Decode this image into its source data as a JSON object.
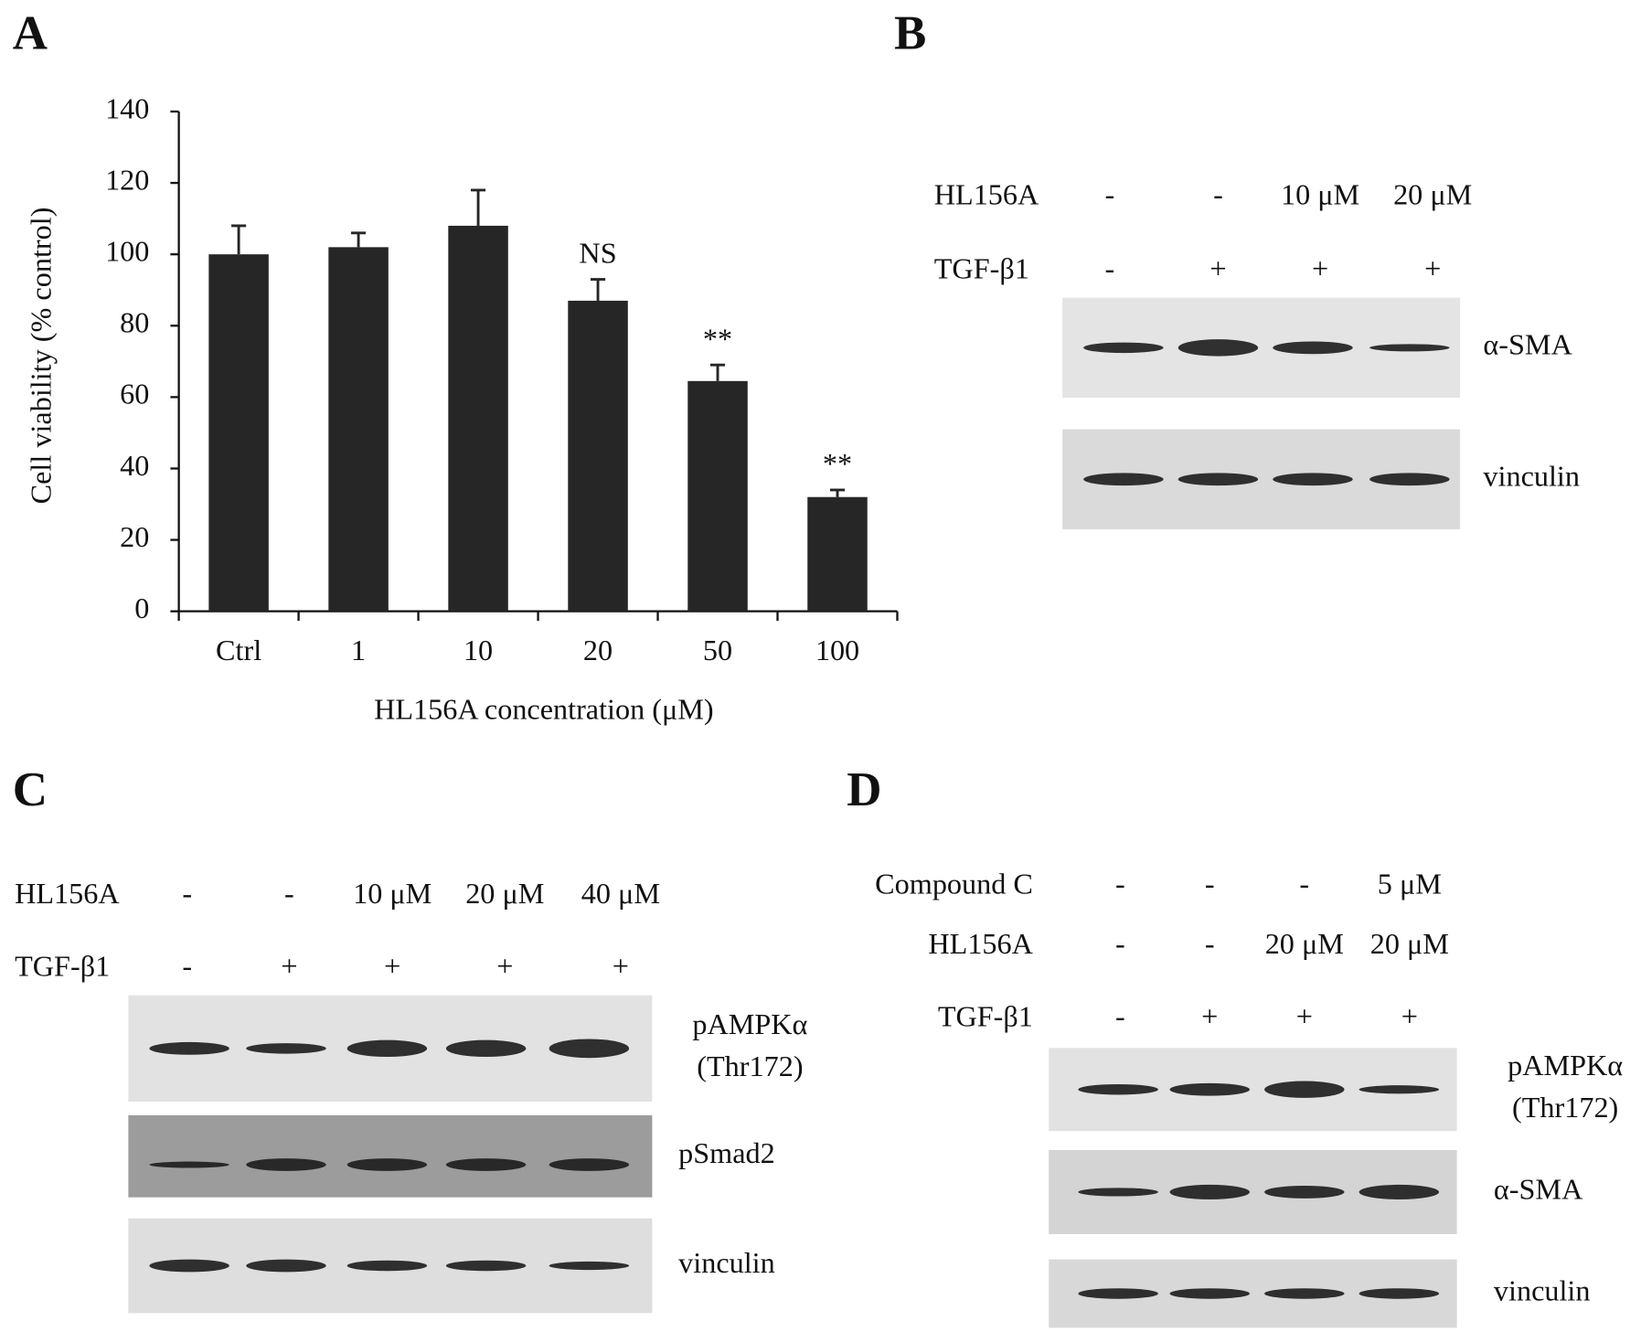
{
  "panel_labels": [
    "A",
    "B",
    "C",
    "D"
  ],
  "chart_data": {
    "type": "bar",
    "xlabel": "HL156A concentration (μM)",
    "ylabel": "Cell viability (% control)",
    "categories": [
      "Ctrl",
      "1",
      "10",
      "20",
      "50",
      "100"
    ],
    "values": [
      100,
      102,
      108,
      87,
      64.5,
      32
    ],
    "errors": [
      8,
      4,
      10,
      6,
      4.5,
      2
    ],
    "annotations": [
      null,
      null,
      null,
      "NS",
      "**",
      "**"
    ],
    "color": "#262626",
    "ylim": [
      0,
      140
    ],
    "yticks": [
      0,
      20,
      40,
      60,
      80,
      100,
      120,
      140
    ],
    "grid": false
  },
  "blots": {
    "B": {
      "conditions": [
        {
          "label": "HL156A",
          "values": [
            "-",
            "-",
            "10 μM",
            "20 μM"
          ]
        },
        {
          "label": "TGF-β1",
          "values": [
            "-",
            "+",
            "+",
            "+"
          ]
        }
      ],
      "proteins": [
        [
          "α-SMA"
        ],
        [
          "vinculin"
        ]
      ]
    },
    "C": {
      "conditions": [
        {
          "label": "HL156A",
          "values": [
            "-",
            "-",
            "10 μM",
            "20 μM",
            "40 μM"
          ]
        },
        {
          "label": "TGF-β1",
          "values": [
            "-",
            "+",
            "+",
            "+",
            "+"
          ]
        }
      ],
      "proteins": [
        [
          "pAMPKα",
          "(Thr172)"
        ],
        [
          "pSmad2"
        ],
        [
          "vinculin"
        ]
      ]
    },
    "D": {
      "conditions": [
        {
          "label": "Compound C",
          "values": [
            "-",
            "-",
            "-",
            "5 μM"
          ]
        },
        {
          "label": "HL156A",
          "values": [
            "-",
            "-",
            "20 μM",
            "20 μM"
          ]
        },
        {
          "label": "TGF-β1",
          "values": [
            "-",
            "+",
            "+",
            "+"
          ]
        }
      ],
      "proteins": [
        [
          "pAMPKα",
          "(Thr172)"
        ],
        [
          "α-SMA"
        ],
        [
          "vinculin"
        ]
      ]
    }
  }
}
